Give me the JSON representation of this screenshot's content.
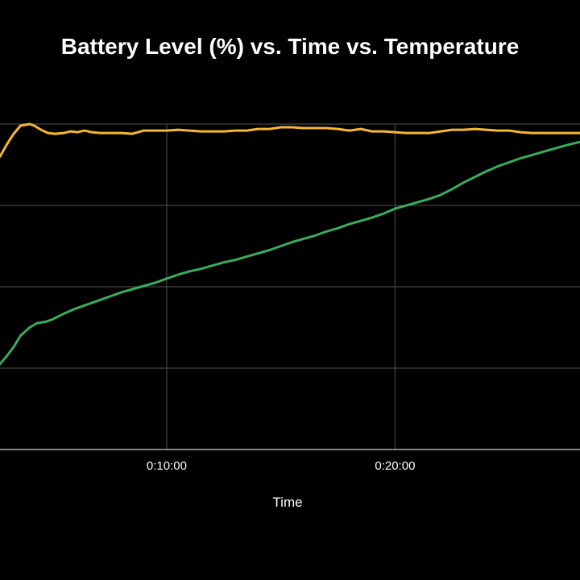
{
  "chart_data": {
    "type": "line",
    "title": "Battery Level (%) vs. Time vs. Temperature",
    "xlabel": "Time",
    "ylabel": "",
    "x_unit": "minutes",
    "x_tick_labels": [
      {
        "value": 10,
        "label": "0:10:00"
      },
      {
        "value": 20,
        "label": "0:20:00"
      }
    ],
    "xlim": [
      2.7,
      28.1
    ],
    "ylim": [
      0,
      4
    ],
    "y_gridlines": [
      0,
      1,
      2,
      3,
      4
    ],
    "grid": true,
    "legend": "none",
    "colors": {
      "series_1": "#f5b731",
      "series_2": "#3bab5a",
      "grid": "#444444",
      "axis": "#cccccc"
    },
    "series": [
      {
        "color": "#f5b731",
        "x": [
          2.7,
          3.0,
          3.3,
          3.6,
          4.0,
          4.2,
          4.5,
          4.8,
          5.1,
          5.5,
          5.8,
          6.1,
          6.4,
          6.7,
          7.1,
          7.5,
          8.0,
          8.5,
          9.0,
          9.5,
          10.0,
          10.5,
          11.0,
          11.5,
          12.0,
          12.5,
          13.0,
          13.5,
          14.0,
          14.5,
          15.0,
          15.5,
          16.0,
          16.5,
          17.0,
          17.5,
          18.0,
          18.5,
          19.0,
          19.5,
          20.0,
          20.5,
          21.0,
          21.5,
          22.0,
          22.5,
          23.0,
          23.5,
          24.0,
          24.5,
          25.0,
          25.5,
          26.0,
          26.5,
          27.0,
          27.5,
          28.1
        ],
        "y": [
          3.6,
          3.75,
          3.88,
          3.98,
          4.0,
          3.98,
          3.93,
          3.89,
          3.88,
          3.89,
          3.91,
          3.9,
          3.92,
          3.9,
          3.89,
          3.89,
          3.89,
          3.88,
          3.92,
          3.92,
          3.92,
          3.93,
          3.92,
          3.91,
          3.91,
          3.91,
          3.92,
          3.92,
          3.94,
          3.94,
          3.96,
          3.96,
          3.95,
          3.95,
          3.95,
          3.94,
          3.92,
          3.94,
          3.91,
          3.91,
          3.9,
          3.89,
          3.89,
          3.89,
          3.91,
          3.93,
          3.93,
          3.94,
          3.93,
          3.92,
          3.92,
          3.9,
          3.89,
          3.89,
          3.89,
          3.89,
          3.89
        ]
      },
      {
        "color": "#3bab5a",
        "x": [
          2.7,
          3.0,
          3.3,
          3.6,
          4.0,
          4.3,
          4.7,
          5.0,
          5.5,
          6.0,
          6.5,
          7.0,
          7.5,
          8.0,
          8.5,
          9.0,
          9.5,
          10.0,
          10.5,
          11.0,
          11.5,
          12.0,
          12.5,
          13.0,
          13.5,
          14.0,
          14.5,
          15.0,
          15.5,
          16.0,
          16.5,
          17.0,
          17.5,
          18.0,
          18.5,
          19.0,
          19.5,
          20.0,
          20.5,
          21.0,
          21.5,
          22.0,
          22.5,
          23.0,
          23.5,
          24.0,
          24.5,
          25.0,
          25.5,
          26.0,
          26.5,
          27.0,
          27.5,
          28.1
        ],
        "y": [
          1.05,
          1.15,
          1.26,
          1.4,
          1.5,
          1.55,
          1.57,
          1.6,
          1.67,
          1.73,
          1.78,
          1.83,
          1.88,
          1.93,
          1.97,
          2.01,
          2.05,
          2.1,
          2.15,
          2.19,
          2.22,
          2.26,
          2.3,
          2.33,
          2.37,
          2.41,
          2.45,
          2.5,
          2.55,
          2.59,
          2.63,
          2.68,
          2.72,
          2.77,
          2.81,
          2.85,
          2.9,
          2.96,
          3.0,
          3.04,
          3.08,
          3.13,
          3.2,
          3.28,
          3.35,
          3.42,
          3.48,
          3.53,
          3.58,
          3.62,
          3.66,
          3.7,
          3.74,
          3.78
        ]
      }
    ]
  }
}
